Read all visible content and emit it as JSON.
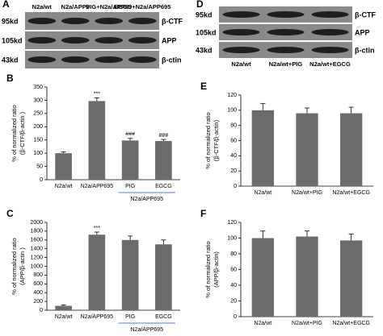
{
  "blots": [
    {
      "panel": "A",
      "columns": [
        "N2a/wt",
        "N2a/APP6",
        "PIG+N2a/APP69",
        "EGCG+N2a/APP695"
      ],
      "rows": [
        {
          "size": "95kd",
          "label": "β-CTF"
        },
        {
          "size": "105kd",
          "label": "APP"
        },
        {
          "size": "43kd",
          "label": "β-ctin"
        }
      ]
    },
    {
      "panel": "D",
      "columns": [
        "N2a/wt",
        "N2a/wt+PIG",
        "N2a/wt+EGCG"
      ],
      "rows": [
        {
          "size": "95kd",
          "label": "β-CTF"
        },
        {
          "size": "105kd",
          "label": "APP"
        },
        {
          "size": "43kd",
          "label": "β-ctin"
        }
      ]
    }
  ],
  "chart_data": [
    {
      "type": "bar",
      "panel": "B",
      "y_label": [
        "% of normalized ratio",
        "(β-CTF/β-actin )"
      ],
      "categories": [
        "N2a/wt",
        "N2a/APP695",
        "PIG",
        "EGCG"
      ],
      "values": [
        100,
        297,
        148,
        146
      ],
      "errors": [
        5,
        12,
        8,
        6
      ],
      "bar_labels": [
        null,
        "***",
        "###",
        "###"
      ],
      "group_label": "N2a/APP695",
      "color": "#6b6b6b",
      "ylim": [
        0,
        350
      ],
      "yticks": [
        0,
        50,
        100,
        150,
        200,
        250,
        300,
        350
      ]
    },
    {
      "type": "bar",
      "panel": "C",
      "y_label": [
        "% of normalized ratio",
        "(APP/β-actin )"
      ],
      "categories": [
        "N2a/wt",
        "N2a/APP695",
        "PIG",
        "EGCG"
      ],
      "values": [
        100,
        1720,
        1600,
        1500
      ],
      "errors": [
        20,
        60,
        90,
        100
      ],
      "bar_labels": [
        null,
        "***",
        null,
        null
      ],
      "group_label": "N2a/APP695",
      "color": "#6b6b6b",
      "ylim": [
        0,
        2000
      ],
      "yticks": [
        0,
        200,
        400,
        600,
        800,
        1000,
        1200,
        1400,
        1600,
        1800,
        2000
      ]
    },
    {
      "type": "bar",
      "panel": "E",
      "y_label": [
        "% of normalized ratio",
        "(β-CTF/β-actin)"
      ],
      "categories": [
        "N2a/wt",
        "N2a/wt+PIG",
        "N2a/wt+EGCG"
      ],
      "values": [
        100,
        96,
        96
      ],
      "errors": [
        9,
        7,
        8
      ],
      "color": "#6b6b6b",
      "ylim": [
        0,
        120
      ],
      "yticks": [
        0,
        20,
        40,
        60,
        80,
        100,
        120
      ]
    },
    {
      "type": "bar",
      "panel": "F",
      "y_label": [
        "% of normalized ratio",
        "(APP/β-actin)"
      ],
      "categories": [
        "N2a/wt",
        "N2a/wt+PIG",
        "N2a/wt+EGCG"
      ],
      "values": [
        100,
        102,
        97
      ],
      "errors": [
        9,
        7,
        8
      ],
      "color": "#6b6b6b",
      "ylim": [
        0,
        120
      ],
      "yticks": [
        0,
        20,
        40,
        60,
        80,
        100,
        120
      ]
    }
  ]
}
